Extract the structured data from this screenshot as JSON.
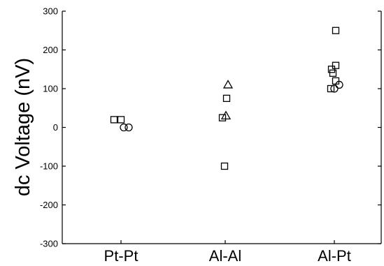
{
  "chart_data": {
    "type": "scatter",
    "title": "",
    "xlabel": "",
    "ylabel": "dc Voltage (nV)",
    "ylim": [
      -300,
      300
    ],
    "yticks": [
      -300,
      -200,
      -100,
      0,
      100,
      200,
      300
    ],
    "ytick_labels": [
      "-300",
      "-200",
      "-100",
      "0",
      "100",
      "200",
      "300"
    ],
    "categories": [
      "Pt-Pt",
      "Al-Al",
      "Al-Pt"
    ],
    "grid": false,
    "legend": "none",
    "series": [
      {
        "marker": "square",
        "points": [
          {
            "category": "Pt-Pt",
            "offset": -0.1,
            "y": 20
          },
          {
            "category": "Pt-Pt",
            "offset": 0.0,
            "y": 20
          },
          {
            "category": "Al-Al",
            "offset": -0.04,
            "y": 25
          },
          {
            "category": "Al-Al",
            "offset": 0.02,
            "y": 75
          },
          {
            "category": "Al-Al",
            "offset": -0.01,
            "y": -100
          },
          {
            "category": "Al-Pt",
            "offset": -0.04,
            "y": 150
          },
          {
            "category": "Al-Pt",
            "offset": -0.02,
            "y": 140
          },
          {
            "category": "Al-Pt",
            "offset": 0.02,
            "y": 160
          },
          {
            "category": "Al-Pt",
            "offset": 0.02,
            "y": 120
          },
          {
            "category": "Al-Pt",
            "offset": -0.05,
            "y": 100
          },
          {
            "category": "Al-Pt",
            "offset": 0.02,
            "y": 250
          }
        ]
      },
      {
        "marker": "circle",
        "points": [
          {
            "category": "Pt-Pt",
            "offset": 0.04,
            "y": 0
          },
          {
            "category": "Pt-Pt",
            "offset": 0.11,
            "y": 0
          },
          {
            "category": "Al-Pt",
            "offset": 0.0,
            "y": 100
          },
          {
            "category": "Al-Pt",
            "offset": 0.07,
            "y": 110
          }
        ]
      },
      {
        "marker": "triangle",
        "points": [
          {
            "category": "Al-Al",
            "offset": 0.01,
            "y": 30
          },
          {
            "category": "Al-Al",
            "offset": 0.04,
            "y": 110
          }
        ]
      }
    ]
  }
}
